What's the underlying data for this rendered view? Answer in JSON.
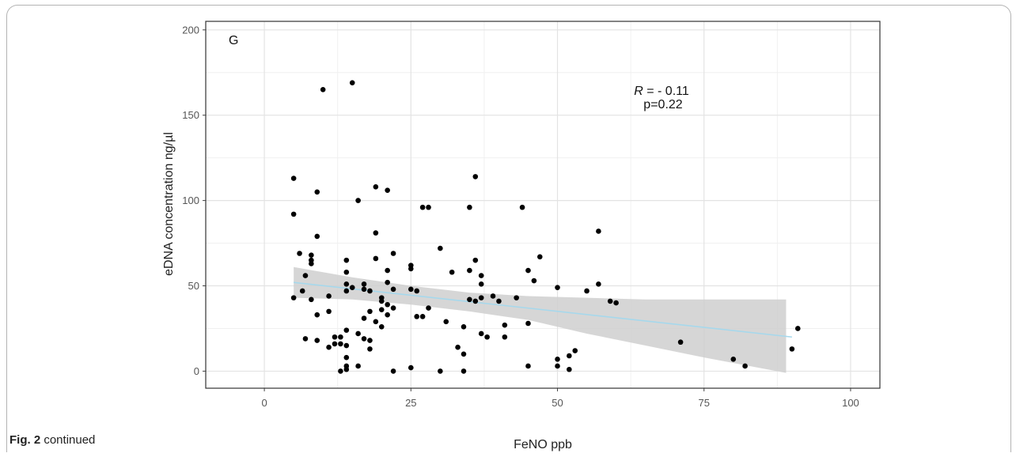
{
  "chart_data": {
    "type": "scatter",
    "panel_label": "G",
    "xlabel": "FeNO ppb",
    "ylabel": "eDNA concentration ng/µl",
    "xlim": [
      -10,
      105
    ],
    "ylim": [
      -10,
      205
    ],
    "x_ticks": [
      0,
      25,
      50,
      75,
      100
    ],
    "y_ticks": [
      0,
      50,
      100,
      150,
      200
    ],
    "grid": true,
    "annotation": {
      "r_label": "R",
      "r_value": " = - 0.11",
      "p_text": "p=0.22"
    },
    "trend_line": {
      "x": [
        5,
        90
      ],
      "y": [
        52,
        20
      ],
      "color": "#a6d8ec"
    },
    "confidence_band": {
      "x": [
        5,
        15,
        25,
        35,
        45,
        55,
        65,
        75,
        89
      ],
      "upper": [
        61,
        55,
        50,
        46,
        44,
        43,
        42,
        42,
        42
      ],
      "lower": [
        43,
        42,
        39,
        35,
        30,
        22,
        15,
        8,
        -1
      ],
      "color": "#cfcfcf"
    },
    "points": [
      [
        5,
        113
      ],
      [
        5,
        92
      ],
      [
        5,
        43
      ],
      [
        6,
        69
      ],
      [
        6.5,
        47
      ],
      [
        7,
        56
      ],
      [
        7,
        19
      ],
      [
        8,
        63
      ],
      [
        8,
        65
      ],
      [
        8,
        68
      ],
      [
        8,
        42
      ],
      [
        9,
        105
      ],
      [
        9,
        79
      ],
      [
        9,
        33
      ],
      [
        9,
        18
      ],
      [
        10,
        165
      ],
      [
        11,
        44
      ],
      [
        11,
        35
      ],
      [
        11,
        14
      ],
      [
        12,
        20
      ],
      [
        12,
        16
      ],
      [
        13,
        20
      ],
      [
        13,
        16
      ],
      [
        13,
        0
      ],
      [
        14,
        65
      ],
      [
        14,
        58
      ],
      [
        14,
        51
      ],
      [
        14,
        47
      ],
      [
        14,
        24
      ],
      [
        14,
        15
      ],
      [
        14,
        8
      ],
      [
        14,
        3
      ],
      [
        14,
        1
      ],
      [
        15,
        169
      ],
      [
        15,
        49
      ],
      [
        16,
        100
      ],
      [
        16,
        22
      ],
      [
        16,
        3
      ],
      [
        17,
        51
      ],
      [
        17,
        48
      ],
      [
        17,
        31
      ],
      [
        17,
        19
      ],
      [
        18,
        47
      ],
      [
        18,
        35
      ],
      [
        18,
        18
      ],
      [
        18,
        13
      ],
      [
        19,
        108
      ],
      [
        19,
        81
      ],
      [
        19,
        66
      ],
      [
        19,
        29
      ],
      [
        20,
        43
      ],
      [
        20,
        41
      ],
      [
        20,
        36
      ],
      [
        20,
        26
      ],
      [
        21,
        106
      ],
      [
        21,
        59
      ],
      [
        21,
        52
      ],
      [
        21,
        39
      ],
      [
        21,
        33
      ],
      [
        22,
        69
      ],
      [
        22,
        48
      ],
      [
        22,
        37
      ],
      [
        22,
        0
      ],
      [
        25,
        62
      ],
      [
        25,
        60
      ],
      [
        25,
        48
      ],
      [
        25,
        2
      ],
      [
        26,
        47
      ],
      [
        26,
        32
      ],
      [
        27,
        96
      ],
      [
        27,
        32
      ],
      [
        28,
        96
      ],
      [
        28,
        37
      ],
      [
        30,
        72
      ],
      [
        30,
        0
      ],
      [
        31,
        29
      ],
      [
        32,
        58
      ],
      [
        33,
        14
      ],
      [
        34,
        26
      ],
      [
        34,
        10
      ],
      [
        34,
        0
      ],
      [
        35,
        96
      ],
      [
        35,
        59
      ],
      [
        35,
        42
      ],
      [
        36,
        114
      ],
      [
        36,
        65
      ],
      [
        36,
        41
      ],
      [
        37,
        56
      ],
      [
        37,
        51
      ],
      [
        37,
        43
      ],
      [
        37,
        22
      ],
      [
        38,
        20
      ],
      [
        39,
        44
      ],
      [
        40,
        41
      ],
      [
        41,
        27
      ],
      [
        41,
        20
      ],
      [
        43,
        43
      ],
      [
        44,
        96
      ],
      [
        45,
        59
      ],
      [
        45,
        28
      ],
      [
        45,
        3
      ],
      [
        46,
        53
      ],
      [
        47,
        67
      ],
      [
        50,
        49
      ],
      [
        50,
        7
      ],
      [
        50,
        3
      ],
      [
        52,
        1
      ],
      [
        52,
        9
      ],
      [
        53,
        12
      ],
      [
        55,
        47
      ],
      [
        57,
        82
      ],
      [
        57,
        51
      ],
      [
        59,
        41
      ],
      [
        60,
        40
      ],
      [
        71,
        17
      ],
      [
        80,
        7
      ],
      [
        82,
        3
      ],
      [
        90,
        13
      ],
      [
        91,
        25
      ]
    ],
    "point_color": "#000000"
  },
  "caption": {
    "label": "Fig. 2",
    "text": "continued"
  }
}
